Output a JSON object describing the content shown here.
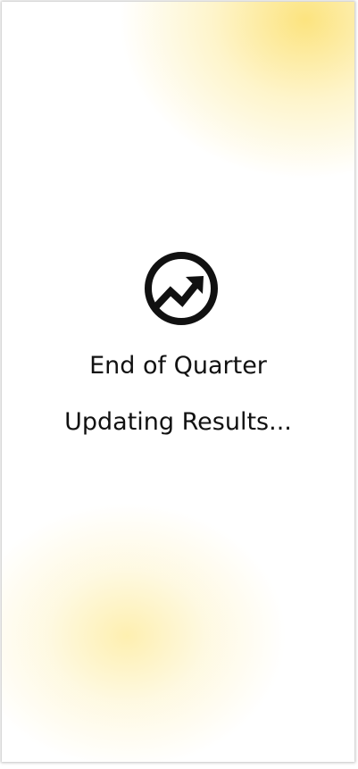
{
  "screen": {
    "icon": "trending-up-circle-icon",
    "title": "End of Quarter",
    "status": "Updating Results..."
  },
  "colors": {
    "glow": "#FCE278",
    "text": "#111111"
  }
}
